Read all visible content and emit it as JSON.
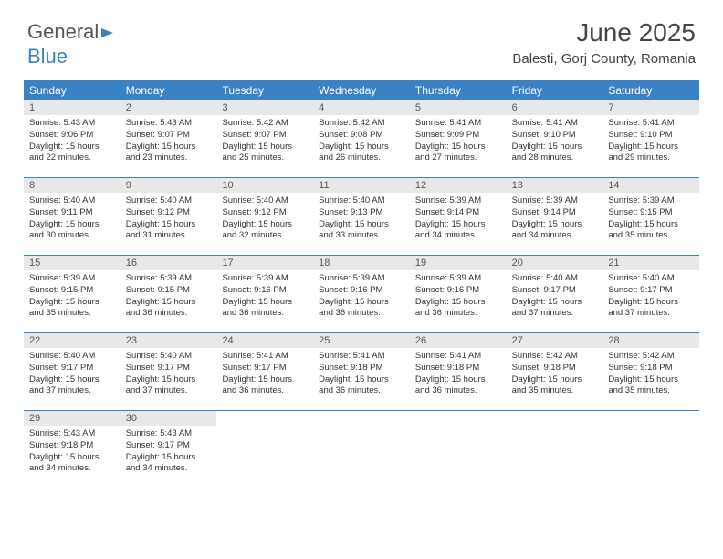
{
  "logo": {
    "part1": "General",
    "part2": "Blue"
  },
  "title": "June 2025",
  "location": "Balesti, Gorj County, Romania",
  "colors": {
    "header_bg": "#3b82c4",
    "header_text": "#ffffff",
    "daynum_bg": "#e8e8e8",
    "row_border": "#3b82c4",
    "text": "#333333",
    "logo_gray": "#555555",
    "logo_blue": "#3b82c4"
  },
  "day_headers": [
    "Sunday",
    "Monday",
    "Tuesday",
    "Wednesday",
    "Thursday",
    "Friday",
    "Saturday"
  ],
  "weeks": [
    [
      {
        "n": "1",
        "sr": "5:43 AM",
        "ss": "9:06 PM",
        "dl": "15 hours and 22 minutes."
      },
      {
        "n": "2",
        "sr": "5:43 AM",
        "ss": "9:07 PM",
        "dl": "15 hours and 23 minutes."
      },
      {
        "n": "3",
        "sr": "5:42 AM",
        "ss": "9:07 PM",
        "dl": "15 hours and 25 minutes."
      },
      {
        "n": "4",
        "sr": "5:42 AM",
        "ss": "9:08 PM",
        "dl": "15 hours and 26 minutes."
      },
      {
        "n": "5",
        "sr": "5:41 AM",
        "ss": "9:09 PM",
        "dl": "15 hours and 27 minutes."
      },
      {
        "n": "6",
        "sr": "5:41 AM",
        "ss": "9:10 PM",
        "dl": "15 hours and 28 minutes."
      },
      {
        "n": "7",
        "sr": "5:41 AM",
        "ss": "9:10 PM",
        "dl": "15 hours and 29 minutes."
      }
    ],
    [
      {
        "n": "8",
        "sr": "5:40 AM",
        "ss": "9:11 PM",
        "dl": "15 hours and 30 minutes."
      },
      {
        "n": "9",
        "sr": "5:40 AM",
        "ss": "9:12 PM",
        "dl": "15 hours and 31 minutes."
      },
      {
        "n": "10",
        "sr": "5:40 AM",
        "ss": "9:12 PM",
        "dl": "15 hours and 32 minutes."
      },
      {
        "n": "11",
        "sr": "5:40 AM",
        "ss": "9:13 PM",
        "dl": "15 hours and 33 minutes."
      },
      {
        "n": "12",
        "sr": "5:39 AM",
        "ss": "9:14 PM",
        "dl": "15 hours and 34 minutes."
      },
      {
        "n": "13",
        "sr": "5:39 AM",
        "ss": "9:14 PM",
        "dl": "15 hours and 34 minutes."
      },
      {
        "n": "14",
        "sr": "5:39 AM",
        "ss": "9:15 PM",
        "dl": "15 hours and 35 minutes."
      }
    ],
    [
      {
        "n": "15",
        "sr": "5:39 AM",
        "ss": "9:15 PM",
        "dl": "15 hours and 35 minutes."
      },
      {
        "n": "16",
        "sr": "5:39 AM",
        "ss": "9:15 PM",
        "dl": "15 hours and 36 minutes."
      },
      {
        "n": "17",
        "sr": "5:39 AM",
        "ss": "9:16 PM",
        "dl": "15 hours and 36 minutes."
      },
      {
        "n": "18",
        "sr": "5:39 AM",
        "ss": "9:16 PM",
        "dl": "15 hours and 36 minutes."
      },
      {
        "n": "19",
        "sr": "5:39 AM",
        "ss": "9:16 PM",
        "dl": "15 hours and 36 minutes."
      },
      {
        "n": "20",
        "sr": "5:40 AM",
        "ss": "9:17 PM",
        "dl": "15 hours and 37 minutes."
      },
      {
        "n": "21",
        "sr": "5:40 AM",
        "ss": "9:17 PM",
        "dl": "15 hours and 37 minutes."
      }
    ],
    [
      {
        "n": "22",
        "sr": "5:40 AM",
        "ss": "9:17 PM",
        "dl": "15 hours and 37 minutes."
      },
      {
        "n": "23",
        "sr": "5:40 AM",
        "ss": "9:17 PM",
        "dl": "15 hours and 37 minutes."
      },
      {
        "n": "24",
        "sr": "5:41 AM",
        "ss": "9:17 PM",
        "dl": "15 hours and 36 minutes."
      },
      {
        "n": "25",
        "sr": "5:41 AM",
        "ss": "9:18 PM",
        "dl": "15 hours and 36 minutes."
      },
      {
        "n": "26",
        "sr": "5:41 AM",
        "ss": "9:18 PM",
        "dl": "15 hours and 36 minutes."
      },
      {
        "n": "27",
        "sr": "5:42 AM",
        "ss": "9:18 PM",
        "dl": "15 hours and 35 minutes."
      },
      {
        "n": "28",
        "sr": "5:42 AM",
        "ss": "9:18 PM",
        "dl": "15 hours and 35 minutes."
      }
    ],
    [
      {
        "n": "29",
        "sr": "5:43 AM",
        "ss": "9:18 PM",
        "dl": "15 hours and 34 minutes."
      },
      {
        "n": "30",
        "sr": "5:43 AM",
        "ss": "9:17 PM",
        "dl": "15 hours and 34 minutes."
      },
      null,
      null,
      null,
      null,
      null
    ]
  ],
  "labels": {
    "sunrise": "Sunrise:",
    "sunset": "Sunset:",
    "daylight": "Daylight:"
  }
}
